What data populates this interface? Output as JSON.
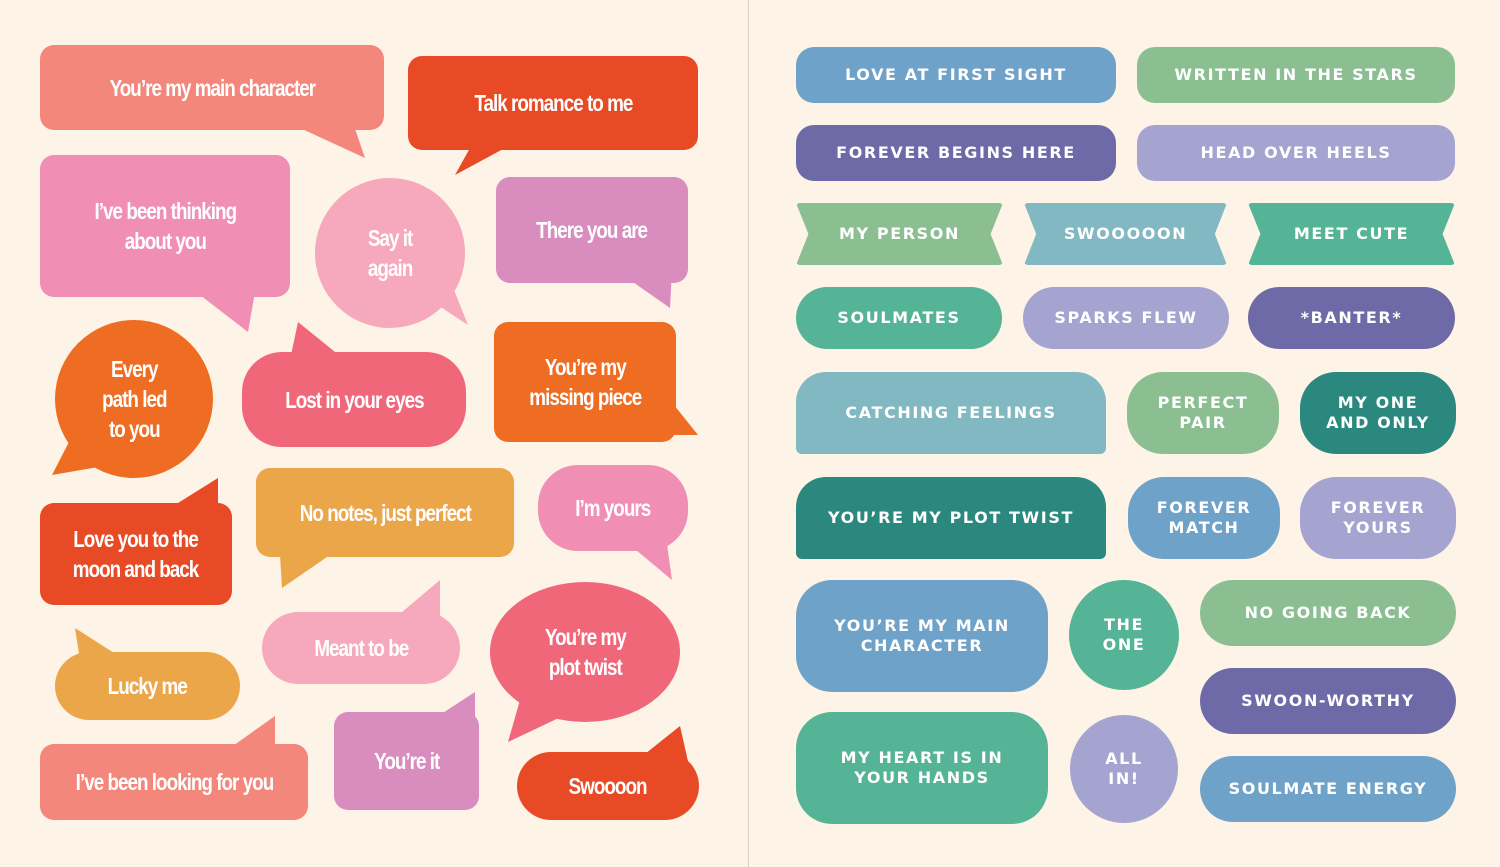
{
  "colors": {
    "background": "#fdf3e6",
    "coral": "#f4877b",
    "red_orange": "#e84a25",
    "pink": "#f08fb3",
    "light_pink": "#f6a8bd",
    "orchid": "#d98dbe",
    "orange": "#ee6d22",
    "rose": "#f1677a",
    "mustard": "#eba64a",
    "blue": "#6fa2c8",
    "sage": "#8bbf92",
    "indigo": "#6e6aa8",
    "lavender": "#a5a4d0",
    "aqua": "#82b8c2",
    "teal": "#55b496",
    "dark_teal": "#2b887e"
  },
  "left_stickers": [
    {
      "text": "You’re my main character",
      "color": "#f4877b"
    },
    {
      "text": "Talk romance to me",
      "color": "#e84a25"
    },
    {
      "text": "I’ve been thinking\nabout you",
      "color": "#f08fb3"
    },
    {
      "text": "Say it\nagain",
      "color": "#f6a8bd"
    },
    {
      "text": "There you are",
      "color": "#d98dbe"
    },
    {
      "text": "Every\npath led\nto you",
      "color": "#ee6d22"
    },
    {
      "text": "Lost in your eyes",
      "color": "#f1677a"
    },
    {
      "text": "You’re my\nmissing piece",
      "color": "#ee6d22"
    },
    {
      "text": "Love you to the\nmoon and back",
      "color": "#e84a25"
    },
    {
      "text": "No notes, just perfect",
      "color": "#eba64a"
    },
    {
      "text": "I’m yours",
      "color": "#f08fb3"
    },
    {
      "text": "Lucky me",
      "color": "#eba64a"
    },
    {
      "text": "Meant to be",
      "color": "#f6a8bd"
    },
    {
      "text": "You’re my\nplot twist",
      "color": "#f1677a"
    },
    {
      "text": "I’ve been looking for you",
      "color": "#f4877b"
    },
    {
      "text": "You’re it",
      "color": "#d98dbe"
    },
    {
      "text": "Swoooon",
      "color": "#e84a25"
    }
  ],
  "right_stickers": [
    {
      "text": "LOVE AT FIRST SIGHT",
      "color": "#6fa2c8"
    },
    {
      "text": "WRITTEN IN THE STARS",
      "color": "#8bbf92"
    },
    {
      "text": "FOREVER BEGINS HERE",
      "color": "#6e6aa8"
    },
    {
      "text": "HEAD OVER HEELS",
      "color": "#a5a4d0"
    },
    {
      "text": "MY PERSON",
      "color": "#8bbf92"
    },
    {
      "text": "SWOOOOON",
      "color": "#82b8c2"
    },
    {
      "text": "MEET CUTE",
      "color": "#55b496"
    },
    {
      "text": "SOULMATES",
      "color": "#55b496"
    },
    {
      "text": "SPARKS FLEW",
      "color": "#a5a4d0"
    },
    {
      "text": "*BANTER*",
      "color": "#6e6aa8"
    },
    {
      "text": "CATCHING FEELINGS",
      "color": "#82b8c2"
    },
    {
      "text": "PERFECT\nPAIR",
      "color": "#8bbf92"
    },
    {
      "text": "MY ONE\nAND ONLY",
      "color": "#2b887e"
    },
    {
      "text": "YOU’RE MY PLOT TWIST",
      "color": "#2b887e"
    },
    {
      "text": "FOREVER\nMATCH",
      "color": "#6fa2c8"
    },
    {
      "text": "FOREVER\nYOURS",
      "color": "#a5a4d0"
    },
    {
      "text": "YOU’RE MY MAIN\nCHARACTER",
      "color": "#6fa2c8"
    },
    {
      "text": "THE\nONE",
      "color": "#55b496"
    },
    {
      "text": "NO GOING BACK",
      "color": "#8bbf92"
    },
    {
      "text": "SWOON-WORTHY",
      "color": "#6e6aa8"
    },
    {
      "text": "SOULMATE ENERGY",
      "color": "#6fa2c8"
    },
    {
      "text": "MY HEART IS IN\nYOUR HANDS",
      "color": "#55b496"
    },
    {
      "text": "ALL\nIN!",
      "color": "#a5a4d0"
    }
  ]
}
